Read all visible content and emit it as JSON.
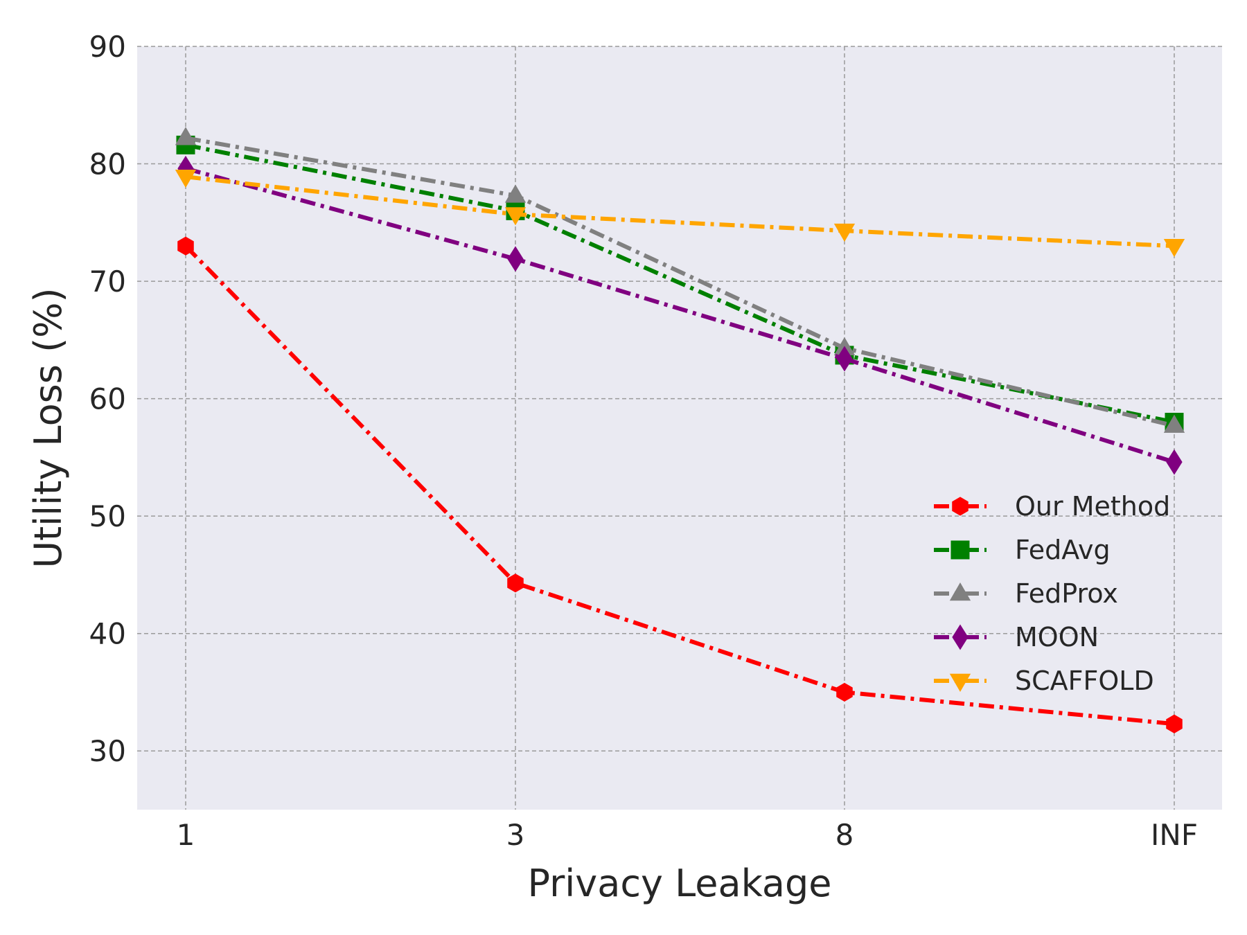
{
  "chart_data": {
    "type": "line",
    "title": "",
    "xlabel": "Privacy Leakage",
    "ylabel": "Utility Loss (%)",
    "categories": [
      "1",
      "3",
      "8",
      "INF"
    ],
    "ylim": [
      25,
      90
    ],
    "yticks": [
      30,
      40,
      50,
      60,
      70,
      80,
      90
    ],
    "grid": true,
    "legend_position": "lower-right",
    "series": [
      {
        "name": "Our Method",
        "values": [
          73.0,
          44.3,
          35.0,
          32.3
        ],
        "color": "#ff0000",
        "marker": "hexagon"
      },
      {
        "name": "FedAvg",
        "values": [
          81.6,
          76.0,
          63.7,
          58.0
        ],
        "color": "#008000",
        "marker": "square"
      },
      {
        "name": "FedProx",
        "values": [
          82.2,
          77.3,
          64.3,
          57.7
        ],
        "color": "#808080",
        "marker": "triangle-up"
      },
      {
        "name": "MOON",
        "values": [
          79.6,
          71.9,
          63.4,
          54.6
        ],
        "color": "#800080",
        "marker": "diamond"
      },
      {
        "name": "SCAFFOLD",
        "values": [
          78.9,
          75.7,
          74.3,
          73.0
        ],
        "color": "#ffa500",
        "marker": "triangle-down"
      }
    ]
  }
}
